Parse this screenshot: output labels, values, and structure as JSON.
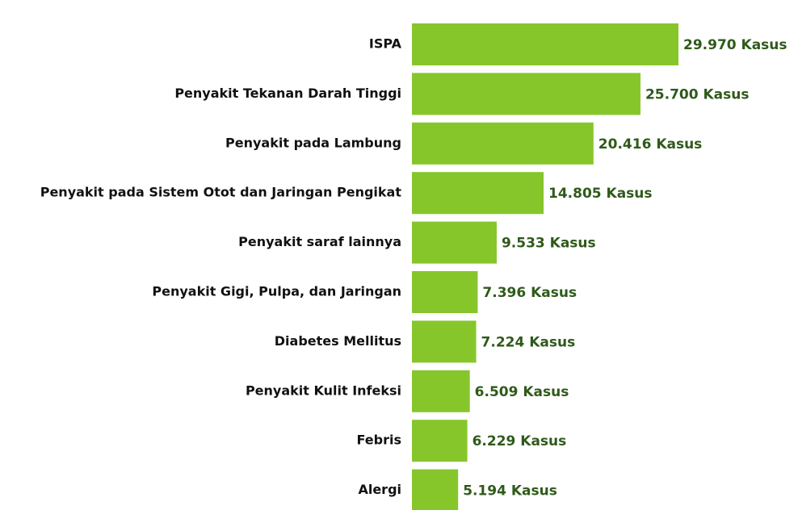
{
  "chart_data": {
    "type": "bar",
    "orientation": "horizontal",
    "color": "#86c62b",
    "categories": [
      "ISPA",
      "Penyakit Tekanan Darah Tinggi",
      "Penyakit pada Lambung",
      "Penyakit pada Sistem Otot dan Jaringan Pengikat",
      "Penyakit saraf lainnya",
      "Penyakit Gigi, Pulpa, dan Jaringan",
      "Diabetes Mellitus",
      "Penyakit Kulit Infeksi",
      "Febris",
      "Alergi"
    ],
    "values": [
      29970,
      25700,
      20416,
      14805,
      9533,
      7396,
      7224,
      6509,
      6229,
      5194
    ],
    "value_labels": [
      "29.970 Kasus",
      "25.700 Kasus",
      "20.416 Kasus",
      "14.805 Kasus",
      "9.533 Kasus",
      "7.396 Kasus",
      "7.224 Kasus",
      "6.509 Kasus",
      "6.229 Kasus",
      "5.194 Kasus"
    ]
  }
}
